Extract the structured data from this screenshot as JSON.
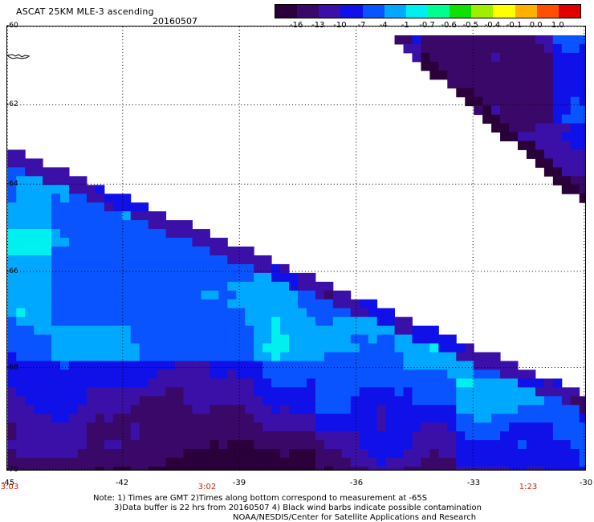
{
  "header": {
    "title": "ASCAT 25KM MLE-3 ascending",
    "date": "20160507"
  },
  "colorbar": {
    "labels": [
      "-16",
      "-13",
      "-10",
      "-7",
      "-4",
      "-1",
      "-0.7",
      "-0.6",
      "-0.5",
      "-0.4",
      "-0.1",
      "0.0",
      "1.0"
    ],
    "colors": [
      "#2a003a",
      "#3a0868",
      "#3a10a8",
      "#1010e8",
      "#0a54ff",
      "#00a8ff",
      "#00f0f0",
      "#00ff90",
      "#10e000",
      "#a0ee00",
      "#ffff00",
      "#ffb000",
      "#ff5000",
      "#e00000"
    ]
  },
  "axes": {
    "lat_labels": [
      "-60",
      "-62",
      "-64",
      "-66",
      "-68",
      "-70"
    ],
    "lon_labels": [
      "-45",
      "-42",
      "-39",
      "-36",
      "-33",
      "-30"
    ]
  },
  "times": [
    "3:03",
    "3:02",
    "1:23"
  ],
  "notes": {
    "line1": "Note: 1) Times are GMT 2)Times along bottom correspond to measurement at -65S",
    "line2": "3)Data buffer is 22 hrs from 20160507 4) Black wind barbs indicate possible contamination",
    "line3": "NOAA/NESDIS/Center for Satellite Applications and Research"
  }
}
